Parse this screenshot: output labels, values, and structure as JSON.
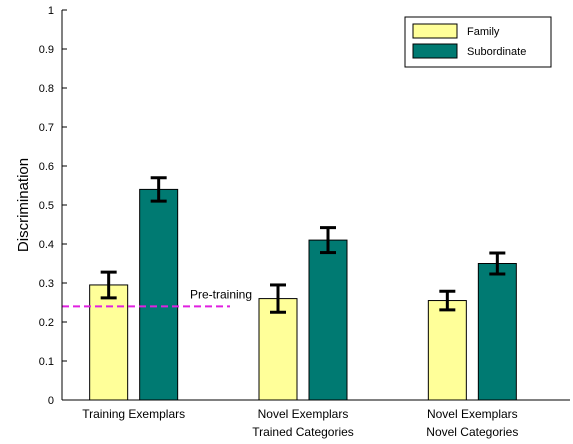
{
  "chart_data": {
    "type": "bar",
    "ylabel": "Discrimination",
    "ylim": [
      0,
      1
    ],
    "yticks": [
      0,
      0.1,
      0.2,
      0.3,
      0.4,
      0.5,
      0.6,
      0.7,
      0.8,
      0.9,
      1
    ],
    "categories": [
      [
        "Training Exemplars"
      ],
      [
        "Novel Exemplars",
        "Trained Categories"
      ],
      [
        "Novel Exemplars",
        "Novel Categories"
      ]
    ],
    "series": [
      {
        "name": "Family",
        "color": "#ffff99",
        "values": [
          0.295,
          0.26,
          0.255
        ],
        "errors": [
          0.033,
          0.035,
          0.024
        ]
      },
      {
        "name": "Subordinate",
        "color": "#007a72",
        "values": [
          0.54,
          0.41,
          0.35
        ],
        "errors": [
          0.03,
          0.032,
          0.027
        ]
      }
    ],
    "reference_line": {
      "label": "Pre-training",
      "value": 0.24,
      "color": "#e020e0"
    },
    "legend_position": "top-right",
    "grid": false
  }
}
